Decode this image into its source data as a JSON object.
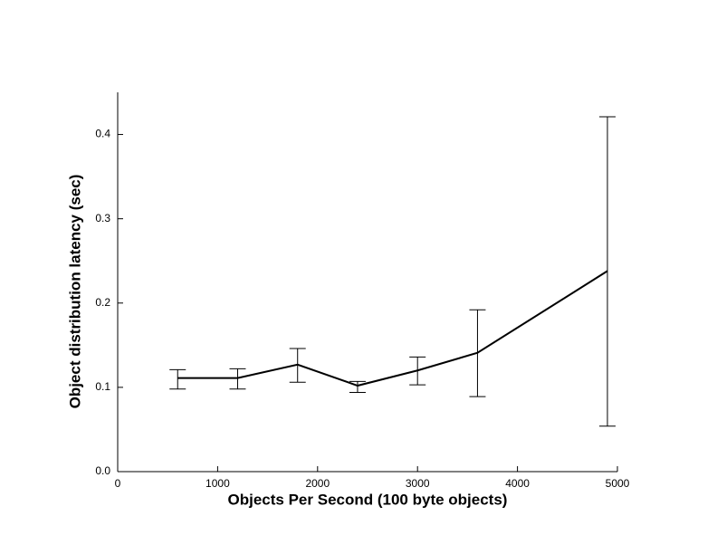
{
  "chart_data": {
    "type": "errorbar-line",
    "x_label": "Objects Per Second (100 byte objects)",
    "y_label": "Object distribution latency (sec)",
    "x": [
      600,
      1200,
      1800,
      2400,
      3000,
      3600,
      4900
    ],
    "series": [
      {
        "color": "#000000",
        "values": [
          0.111,
          0.111,
          0.127,
          0.102,
          0.12,
          0.141,
          0.238
        ],
        "low": [
          0.098,
          0.098,
          0.106,
          0.094,
          0.103,
          0.089,
          0.054
        ],
        "high": [
          0.121,
          0.122,
          0.146,
          0.107,
          0.136,
          0.192,
          0.421
        ]
      }
    ],
    "xlim": [
      0,
      5000
    ],
    "xticks": [
      0,
      1000,
      2000,
      3000,
      4000,
      5000
    ],
    "ylim": [
      0,
      0.45
    ],
    "yticks": [
      {
        "value": 0,
        "label": "0.0"
      },
      {
        "value": 0.1,
        "label": "0.1"
      },
      {
        "value": 0.2,
        "label": "0.2"
      },
      {
        "value": 0.3,
        "label": "0.3"
      },
      {
        "value": 0.4,
        "label": "0.4"
      }
    ]
  }
}
